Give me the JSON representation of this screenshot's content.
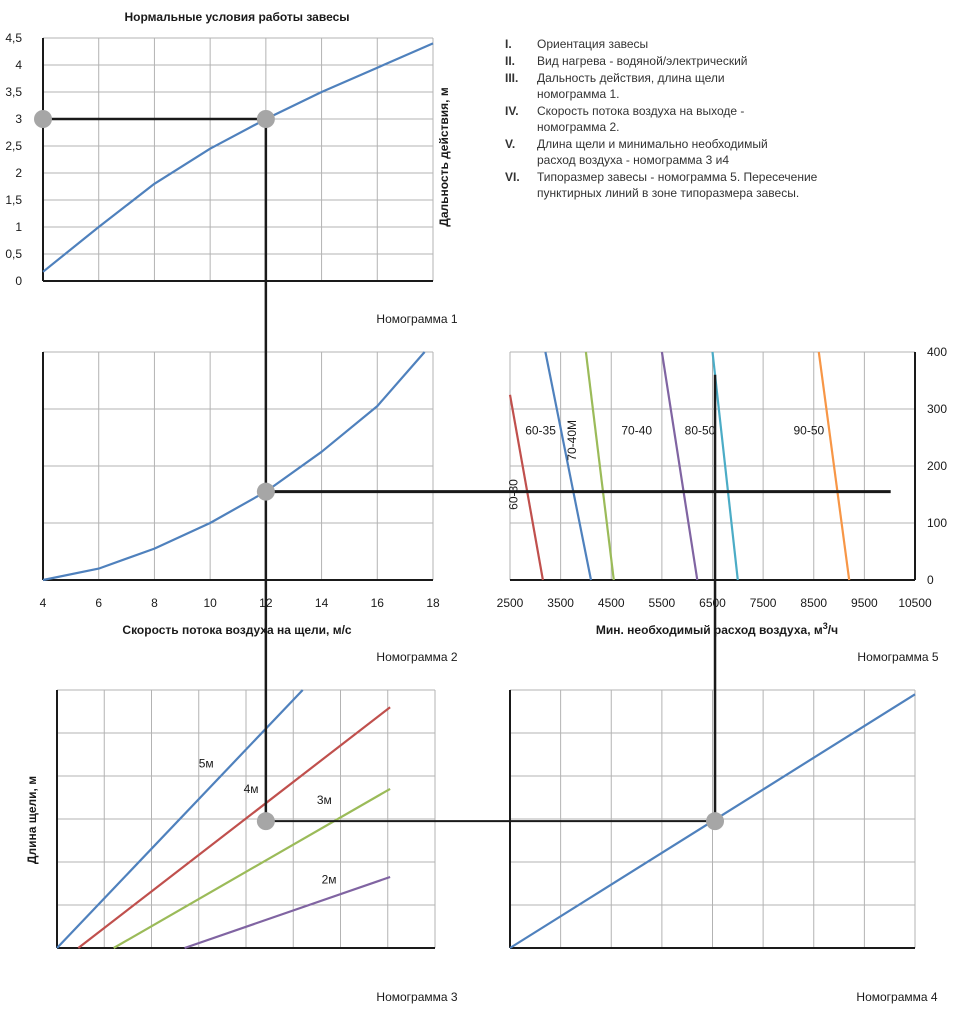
{
  "legend_notes": [
    {
      "num": "I.",
      "text": "Ориентация завесы"
    },
    {
      "num": "II.",
      "text": "Вид нагрева  - водяной/электрический"
    },
    {
      "num": "III.",
      "text": "Дальность действия, длина щели\nномограмма 1."
    },
    {
      "num": "IV.",
      "text": "Скорость потока воздуха на выходе -\nномограмма 2."
    },
    {
      "num": "V.",
      "text": "Длина щели и минимально необходимый\nрасход воздуха - номограмма 3 и4"
    },
    {
      "num": "VI.",
      "text": "Типоразмер завесы - номограмма 5. Пересечение\nпунктирных линий в зоне типоразмера завесы."
    }
  ],
  "colors": {
    "blue": "#4f81bd",
    "red": "#c0504d",
    "green": "#9bbb59",
    "purple": "#8064a2",
    "teal": "#4bacc6",
    "orange": "#f79646",
    "grid": "#b3b3b3",
    "path": "#1a1a1a",
    "marker": "#a6a6a6"
  },
  "chart_data": [
    {
      "id": "nomogram1",
      "type": "line",
      "title": "Нормальные условия работы завесы",
      "caption": "Номограмма 1",
      "xlabel": "",
      "ylabel": "Дальность действия, м",
      "xlim": [
        4,
        18
      ],
      "ylim": [
        0,
        4.5
      ],
      "yticks": [
        0,
        0.5,
        1,
        1.5,
        2,
        2.5,
        3,
        3.5,
        4,
        4.5
      ],
      "ytick_labels": [
        "0",
        "0,5",
        "1",
        "1,5",
        "2",
        "2,5",
        "3",
        "3,5",
        "4",
        "4,5"
      ],
      "grid": true,
      "series": [
        {
          "color": "#4f81bd",
          "x": [
            4,
            6,
            8,
            10,
            12,
            14,
            16,
            18
          ],
          "y": [
            0.17,
            1.0,
            1.8,
            2.45,
            3.0,
            3.5,
            3.95,
            4.4
          ]
        }
      ],
      "markers": [
        {
          "x": 4,
          "y": 3
        },
        {
          "x": 12,
          "y": 3
        }
      ]
    },
    {
      "id": "nomogram2",
      "type": "line",
      "caption": "Номограмма 2",
      "xlabel": "Скорость потока воздуха на щели, м/с",
      "ylabel": "",
      "xlim": [
        4,
        18
      ],
      "xticks": [
        4,
        6,
        8,
        10,
        12,
        14,
        16,
        18
      ],
      "ylim": [
        0,
        4
      ],
      "grid": true,
      "series": [
        {
          "color": "#4f81bd",
          "x": [
            4,
            6,
            8,
            10,
            12,
            14,
            16,
            17.7
          ],
          "y": [
            0,
            0.2,
            0.55,
            1.0,
            1.55,
            2.25,
            3.05,
            4.0
          ]
        }
      ],
      "markers": [
        {
          "x": 12,
          "y": 1.55
        }
      ]
    },
    {
      "id": "nomogram5",
      "type": "line",
      "caption": "Номограмма 5",
      "xlabel": "Мин. необходимый расход воздуха, м³/ч",
      "xlabel_main": "Мин. необходимый расход воздуха, м",
      "xlabel_sup": "3",
      "xlabel_end": "/ч",
      "ylabel": "",
      "xlim": [
        2500,
        10500
      ],
      "xticks": [
        2500,
        3500,
        4500,
        5500,
        6500,
        7500,
        8500,
        9500,
        10500
      ],
      "ylim": [
        0,
        400
      ],
      "yticks": [
        0,
        100,
        200,
        300,
        400
      ],
      "grid": true,
      "series": [
        {
          "name": "60-30",
          "color": "#c0504d",
          "x": [
            2500,
            3150
          ],
          "y": [
            325,
            0
          ]
        },
        {
          "name": "60-35",
          "color": "#4f81bd",
          "x": [
            3200,
            4100
          ],
          "y": [
            400,
            0
          ]
        },
        {
          "name": "70-40M",
          "color": "#9bbb59",
          "x": [
            4000,
            4550
          ],
          "y": [
            400,
            0
          ]
        },
        {
          "name": "70-40",
          "color": "#8064a2",
          "x": [
            5500,
            6200
          ],
          "y": [
            400,
            0
          ]
        },
        {
          "name": "80-50",
          "color": "#4bacc6",
          "x": [
            6500,
            7000
          ],
          "y": [
            400,
            0
          ]
        },
        {
          "name": "90-50",
          "color": "#f79646",
          "x": [
            8600,
            9200
          ],
          "y": [
            400,
            0
          ]
        }
      ],
      "region_labels": [
        {
          "text": "60-30",
          "x": 2650,
          "y": 150,
          "rotate": true
        },
        {
          "text": "60-35",
          "x": 2800,
          "y": 255
        },
        {
          "text": "70-40M",
          "x": 3800,
          "y": 245,
          "rotate": true
        },
        {
          "text": "70-40",
          "x": 4700,
          "y": 255
        },
        {
          "text": "80-50",
          "x": 5950,
          "y": 255
        },
        {
          "text": "90-50",
          "x": 8100,
          "y": 255
        }
      ]
    },
    {
      "id": "nomogram3",
      "type": "line",
      "caption": "Номограмма 3",
      "xlabel": "",
      "ylabel": "Длина щели, м",
      "xlim": [
        0,
        8
      ],
      "ylim": [
        0,
        6
      ],
      "grid": true,
      "series": [
        {
          "name": "5м",
          "color": "#4f81bd",
          "x": [
            0,
            5.2
          ],
          "y": [
            0,
            6
          ]
        },
        {
          "name": "4м",
          "color": "#c0504d",
          "x": [
            0.45,
            7.05
          ],
          "y": [
            0,
            5.6
          ]
        },
        {
          "name": "3м",
          "color": "#9bbb59",
          "x": [
            1.2,
            7.05
          ],
          "y": [
            0,
            3.7
          ]
        },
        {
          "name": "2м",
          "color": "#8064a2",
          "x": [
            2.7,
            7.05
          ],
          "y": [
            0,
            1.65
          ]
        }
      ],
      "line_labels": [
        {
          "text": "5м",
          "x": 3.0,
          "y": 4.2
        },
        {
          "text": "4м",
          "x": 3.95,
          "y": 3.6
        },
        {
          "text": "3м",
          "x": 5.5,
          "y": 3.35
        },
        {
          "text": "2м",
          "x": 5.6,
          "y": 1.5
        }
      ],
      "markers": [
        {
          "x": 3.6,
          "y": 2.95
        }
      ]
    },
    {
      "id": "nomogram4",
      "type": "line",
      "caption": "Номограмма 4",
      "xlabel": "",
      "ylabel": "",
      "xlim": [
        0,
        8
      ],
      "ylim": [
        0,
        6
      ],
      "grid": true,
      "series": [
        {
          "color": "#4f81bd",
          "x": [
            0,
            8
          ],
          "y": [
            0,
            5.9
          ]
        }
      ],
      "markers": [
        {
          "x": 4.05,
          "y": 2.95
        }
      ]
    }
  ]
}
